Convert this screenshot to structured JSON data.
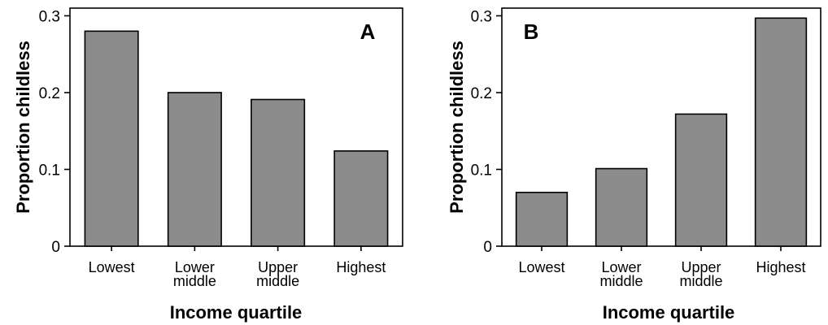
{
  "chart_data": [
    {
      "type": "bar",
      "panel_label": "A",
      "categories": [
        [
          "Lowest"
        ],
        [
          "Lower",
          "middle"
        ],
        [
          "Upper",
          "middle"
        ],
        [
          "Highest"
        ]
      ],
      "values": [
        0.28,
        0.2,
        0.191,
        0.124
      ],
      "xlabel": "Income quartile",
      "ylabel": "Proportion childless",
      "ylim": [
        0,
        0.31
      ],
      "yticks": [
        0,
        0.1,
        0.2,
        0.3
      ],
      "ytick_labels": [
        "0",
        "0.1",
        "0.2",
        "0.3"
      ],
      "bar_color": "#8c8c8c"
    },
    {
      "type": "bar",
      "panel_label": "B",
      "categories": [
        [
          "Lowest"
        ],
        [
          "Lower",
          "middle"
        ],
        [
          "Upper",
          "middle"
        ],
        [
          "Highest"
        ]
      ],
      "values": [
        0.07,
        0.101,
        0.172,
        0.297
      ],
      "xlabel": "Income quartile",
      "ylabel": "Proportion childless",
      "ylim": [
        0,
        0.31
      ],
      "yticks": [
        0,
        0.1,
        0.2,
        0.3
      ],
      "ytick_labels": [
        "0",
        "0.1",
        "0.2",
        "0.3"
      ],
      "bar_color": "#8c8c8c"
    }
  ]
}
